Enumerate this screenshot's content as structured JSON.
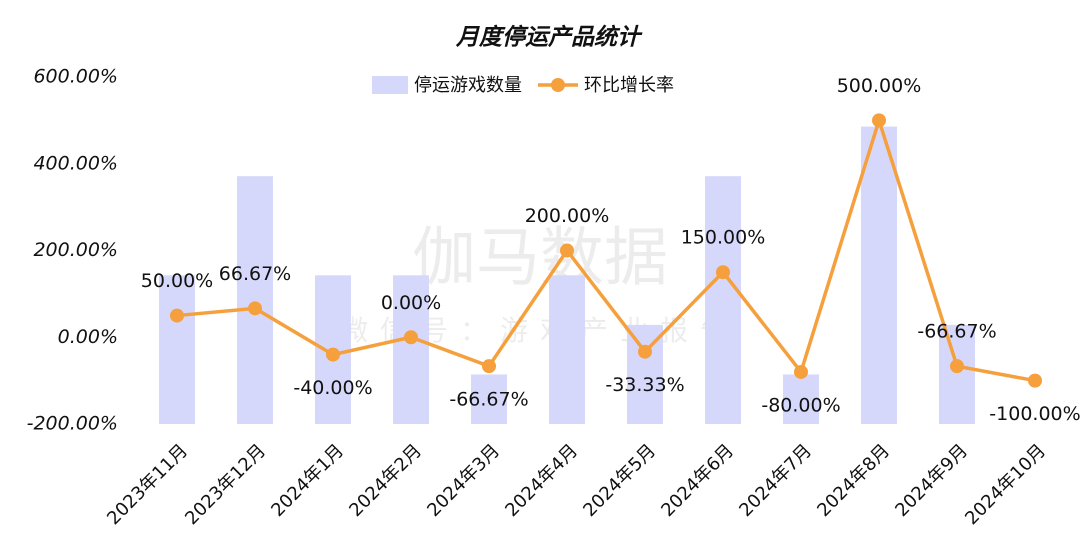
{
  "chart_data": {
    "type": "bar-line",
    "title": "月度停运产品统计",
    "watermark": "伽马数据",
    "watermark_sub": "微信号：游戏产业报告",
    "categories": [
      "2023年11月",
      "2023年12月",
      "2024年1月",
      "2024年2月",
      "2024年3月",
      "2024年4月",
      "2024年5月",
      "2024年6月",
      "2024年7月",
      "2024年8月",
      "2024年9月",
      "2024年10月"
    ],
    "series": [
      {
        "name": "停运游戏数量",
        "type": "bar",
        "axis": "y2",
        "color": "#d6d8fb",
        "values": [
          3,
          5,
          3,
          3,
          1,
          3,
          2,
          5,
          1,
          6,
          2,
          0
        ]
      },
      {
        "name": "环比增长率",
        "type": "line",
        "axis": "y",
        "color": "#f5a03c",
        "values": [
          50,
          66.67,
          -40,
          0,
          -66.67,
          200,
          -33.33,
          150,
          -80,
          500,
          -66.67,
          -100
        ],
        "value_labels": [
          "50.00%",
          "66.67%",
          "-40.00%",
          "0.00%",
          "-66.67%",
          "200.00%",
          "-33.33%",
          "150.00%",
          "-80.00%",
          "500.00%",
          "-66.67%",
          "-100.00%"
        ]
      }
    ],
    "ylim": [
      -200,
      600
    ],
    "yticks": [
      {
        "value": -200,
        "label": "-200.00%"
      },
      {
        "value": 0,
        "label": "0.00%"
      },
      {
        "value": 200,
        "label": "200.00%"
      },
      {
        "value": 400,
        "label": "400.00%"
      },
      {
        "value": 600,
        "label": "600.00%"
      }
    ],
    "y2lim": [
      0,
      7
    ],
    "grid": false,
    "legend": "top"
  }
}
